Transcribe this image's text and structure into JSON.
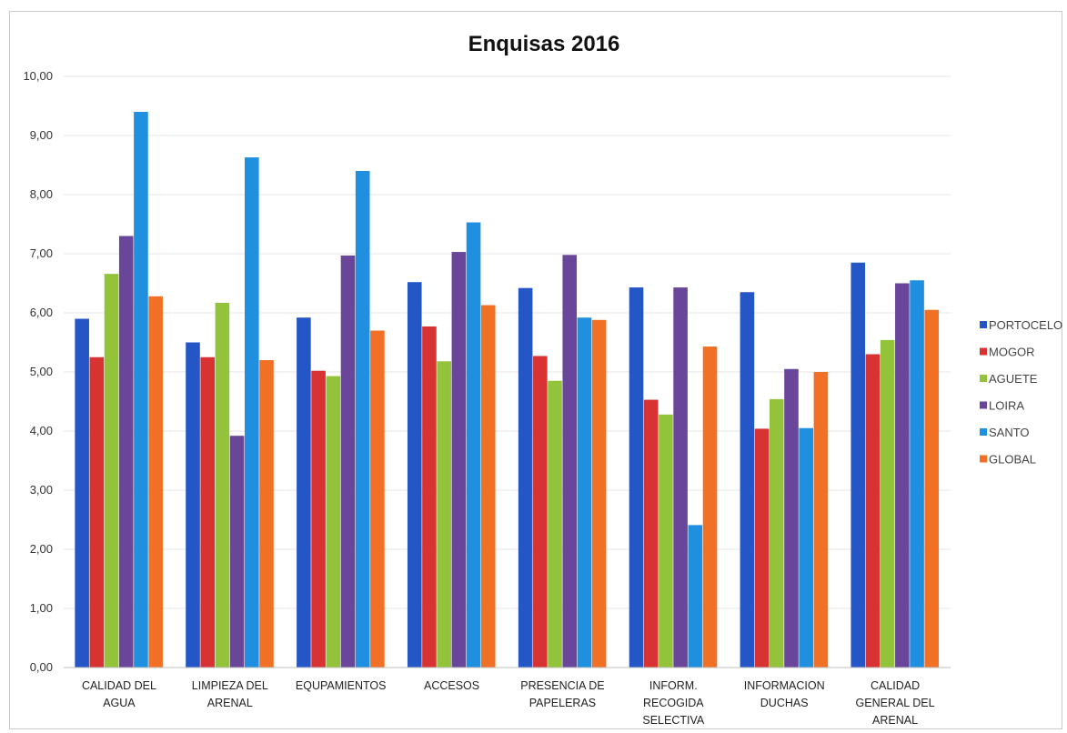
{
  "chart_data": {
    "type": "bar",
    "title": "Enquisas 2016",
    "xlabel": "",
    "ylabel": "",
    "ylim": [
      0,
      10
    ],
    "y_ticks": [
      "0,00",
      "1,00",
      "2,00",
      "3,00",
      "4,00",
      "5,00",
      "6,00",
      "7,00",
      "8,00",
      "9,00",
      "10,00"
    ],
    "grid": true,
    "legend_position": "right",
    "categories": [
      [
        "CALIDAD DEL",
        "AGUA"
      ],
      [
        "LIMPIEZA DEL",
        "ARENAL"
      ],
      [
        "EQUPAMIENTOS"
      ],
      [
        "ACCESOS"
      ],
      [
        "PRESENCIA DE",
        "PAPELERAS"
      ],
      [
        "INFORM.",
        "RECOGIDA",
        "SELECTIVA"
      ],
      [
        "INFORMACION",
        "DUCHAS"
      ],
      [
        "CALIDAD",
        "GENERAL DEL",
        "ARENAL"
      ]
    ],
    "series": [
      {
        "name": "PORTOCELO",
        "color": "#2457c5",
        "values": [
          5.9,
          5.5,
          5.92,
          6.52,
          6.42,
          6.43,
          6.35,
          6.85
        ]
      },
      {
        "name": "MOGOR",
        "color": "#d93232",
        "values": [
          5.25,
          5.25,
          5.02,
          5.77,
          5.27,
          4.53,
          4.04,
          5.3
        ]
      },
      {
        "name": "AGUETE",
        "color": "#93c23b",
        "values": [
          6.66,
          6.17,
          4.93,
          5.18,
          4.85,
          4.28,
          4.54,
          5.54
        ]
      },
      {
        "name": "LOIRA",
        "color": "#6a469a",
        "values": [
          7.3,
          3.92,
          6.97,
          7.03,
          6.98,
          6.43,
          5.05,
          6.5
        ]
      },
      {
        "name": "SANTO",
        "color": "#1f8fe0",
        "values": [
          9.4,
          8.63,
          8.4,
          7.53,
          5.92,
          2.41,
          4.05,
          6.55
        ]
      },
      {
        "name": "GLOBAL",
        "color": "#f07125",
        "values": [
          6.28,
          5.2,
          5.7,
          6.13,
          5.88,
          5.43,
          5.0,
          6.05
        ]
      }
    ]
  }
}
